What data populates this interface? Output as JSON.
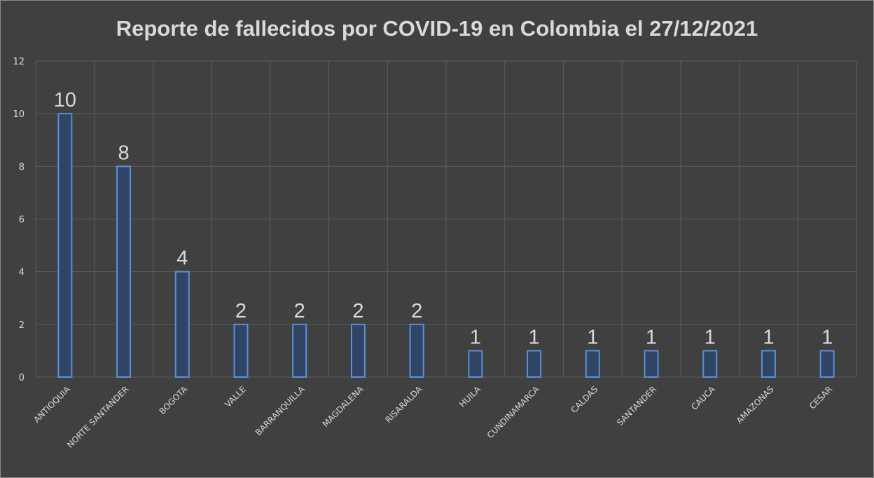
{
  "chart_data": {
    "type": "bar",
    "title": "Reporte de fallecidos por COVID-19 en Colombia el 27/12/2021",
    "xlabel": "",
    "ylabel": "",
    "categories": [
      "ANTIOQUIA",
      "NORTE SANTANDER",
      "BOGOTA",
      "VALLE",
      "BARRANQUILLA",
      "MAGDALENA",
      "RISARALDA",
      "HUILA",
      "CUNDINAMARCA",
      "CALDAS",
      "SANTANDER",
      "CAUCA",
      "AMAZONAS",
      "CESAR"
    ],
    "values": [
      10,
      8,
      4,
      2,
      2,
      2,
      2,
      1,
      1,
      1,
      1,
      1,
      1,
      1
    ],
    "ylim": [
      0,
      12
    ],
    "yticks": [
      0,
      2,
      4,
      6,
      8,
      10,
      12
    ],
    "grid": true,
    "data_labels": true,
    "colors": {
      "background": "#404040",
      "bar_fill": "#2f4565",
      "bar_stroke": "#5b8fd6",
      "grid": "#5c5c5c",
      "text": "#d9d9d9"
    }
  }
}
